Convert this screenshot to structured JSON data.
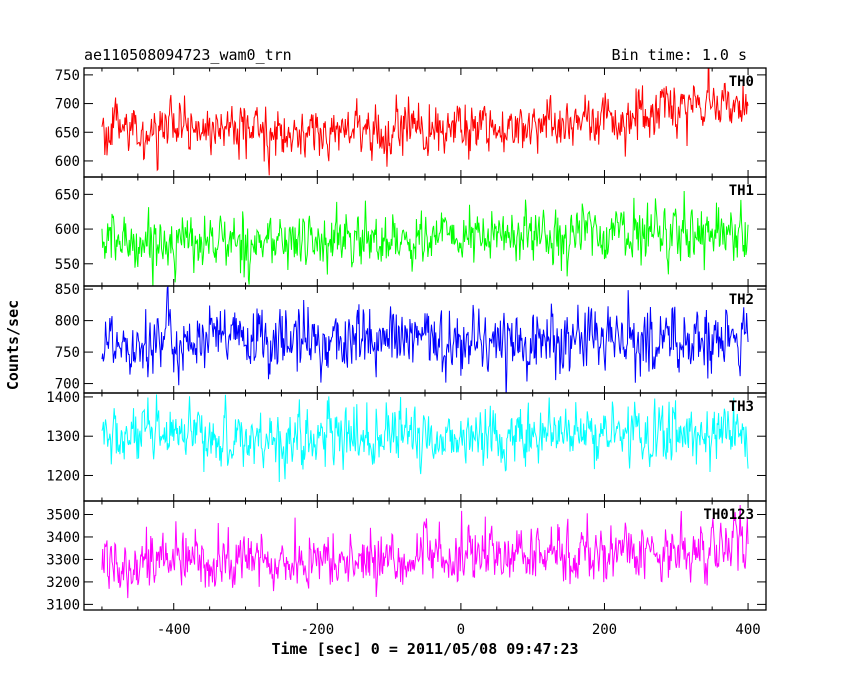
{
  "header": {
    "source": "ae110508094723_wam0_trn",
    "bin_time": "Bin time: 1.0 s"
  },
  "chart_data": {
    "type": "line",
    "xlabel": "Time [sec] 0 = 2011/05/08 09:47:23",
    "ylabel": "Counts/sec",
    "xlim": [
      -525,
      425
    ],
    "x_range": [
      -500,
      400
    ],
    "x_ticks": [
      -400,
      -200,
      0,
      200,
      400
    ],
    "panels": [
      {
        "name": "TH0",
        "color": "#ff0000",
        "ylim": [
          572,
          762
        ],
        "y_ticks": [
          600,
          650,
          700,
          750
        ],
        "trend": [
          [
            -500,
            655
          ],
          [
            -200,
            648
          ],
          [
            0,
            655
          ],
          [
            200,
            670
          ],
          [
            400,
            690
          ]
        ],
        "noise_sd": 22,
        "bursts": [
          {
            "x": 300,
            "amp": 22
          }
        ]
      },
      {
        "name": "TH1",
        "color": "#00ff00",
        "ylim": [
          518,
          675
        ],
        "y_ticks": [
          550,
          600,
          650
        ],
        "trend": [
          [
            -500,
            582
          ],
          [
            -200,
            582
          ],
          [
            0,
            588
          ],
          [
            200,
            595
          ],
          [
            400,
            598
          ]
        ],
        "noise_sd": 20,
        "bursts": []
      },
      {
        "name": "TH2",
        "color": "#0000ff",
        "ylim": [
          685,
          855
        ],
        "y_ticks": [
          700,
          750,
          800,
          850
        ],
        "trend": [
          [
            -500,
            768
          ],
          [
            -200,
            768
          ],
          [
            0,
            768
          ],
          [
            200,
            768
          ],
          [
            400,
            768
          ]
        ],
        "noise_sd": 27,
        "bursts": []
      },
      {
        "name": "TH3",
        "color": "#00ffff",
        "ylim": [
          1135,
          1410
        ],
        "y_ticks": [
          1200,
          1300,
          1400
        ],
        "trend": [
          [
            -500,
            1295
          ],
          [
            -200,
            1295
          ],
          [
            0,
            1298
          ],
          [
            200,
            1305
          ],
          [
            400,
            1310
          ]
        ],
        "noise_sd": 38,
        "bursts": []
      },
      {
        "name": "TH0123",
        "color": "#ff00ff",
        "ylim": [
          3075,
          3560
        ],
        "y_ticks": [
          3100,
          3200,
          3300,
          3400,
          3500
        ],
        "trend": [
          [
            -500,
            3300
          ],
          [
            -200,
            3285
          ],
          [
            0,
            3310
          ],
          [
            200,
            3330
          ],
          [
            400,
            3360
          ]
        ],
        "noise_sd": 65,
        "bursts": []
      }
    ]
  }
}
